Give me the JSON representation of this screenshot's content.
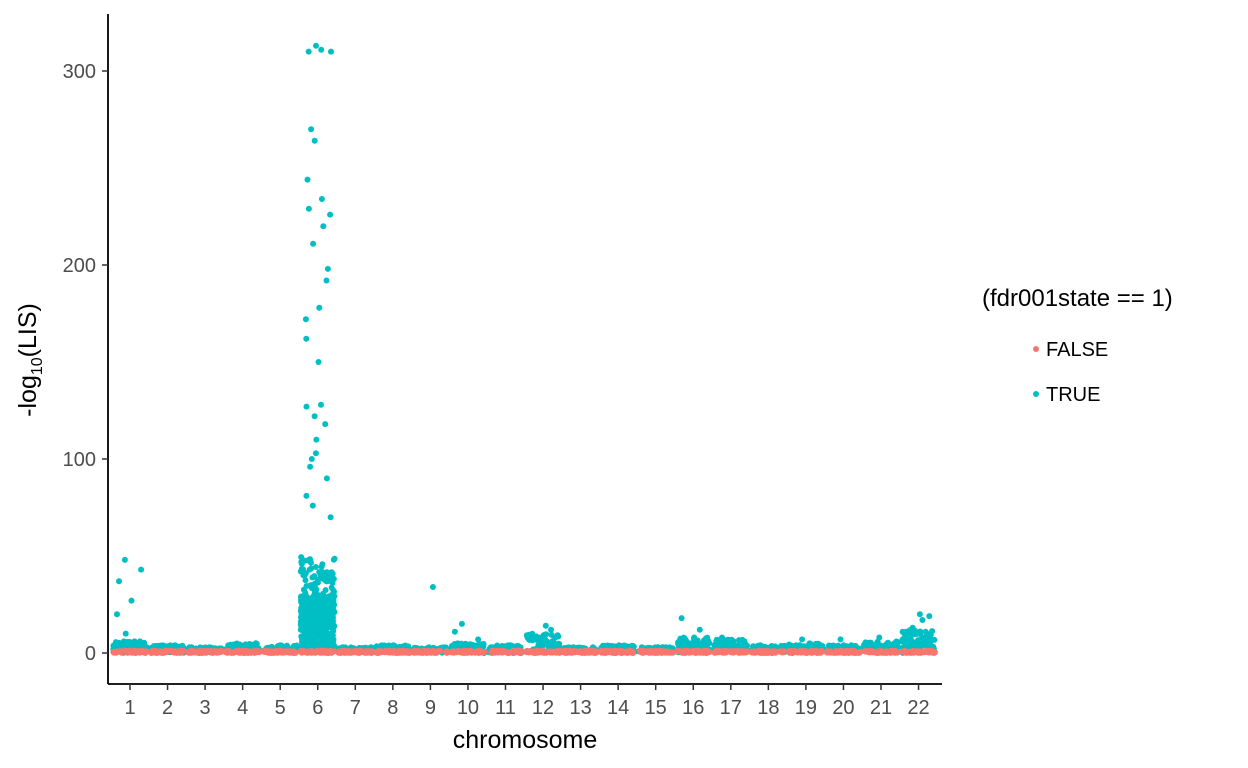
{
  "chart_data": {
    "type": "scatter",
    "title": "",
    "xlabel": "chromosome",
    "ylabel_prefix": "-log",
    "ylabel_sub": "10",
    "ylabel_suffix": "(LIS)",
    "ylim": [
      -13,
      330
    ],
    "yticks": [
      0,
      100,
      200,
      300
    ],
    "categories": [
      "1",
      "2",
      "3",
      "4",
      "5",
      "6",
      "7",
      "8",
      "9",
      "10",
      "11",
      "12",
      "13",
      "14",
      "15",
      "16",
      "17",
      "18",
      "19",
      "20",
      "21",
      "22"
    ],
    "legend": {
      "title": "(fdr001state == 1)",
      "position": "right",
      "entries": [
        {
          "label": "FALSE",
          "color": "#F8766D"
        },
        {
          "label": "TRUE",
          "color": "#00BFC4"
        }
      ]
    },
    "series": [
      {
        "name": "FALSE",
        "color": "#F8766D",
        "description_points": "dense band near 0 across all chromosomes",
        "baseline": 0
      },
      {
        "name": "TRUE",
        "color": "#00BFC4",
        "notable_points": [
          {
            "chr": 1,
            "y": 48
          },
          {
            "chr": 1,
            "y": 37
          },
          {
            "chr": 1,
            "y": 27
          },
          {
            "chr": 1,
            "y": 20
          },
          {
            "chr": 1,
            "y": 10
          },
          {
            "chr": 1,
            "y": 43
          },
          {
            "chr": 1,
            "y": 6
          },
          {
            "chr": 6,
            "y": 310
          },
          {
            "chr": 6,
            "y": 313
          },
          {
            "chr": 6,
            "y": 311
          },
          {
            "chr": 6,
            "y": 310
          },
          {
            "chr": 6,
            "y": 270
          },
          {
            "chr": 6,
            "y": 264
          },
          {
            "chr": 6,
            "y": 244
          },
          {
            "chr": 6,
            "y": 234
          },
          {
            "chr": 6,
            "y": 229
          },
          {
            "chr": 6,
            "y": 226
          },
          {
            "chr": 6,
            "y": 220
          },
          {
            "chr": 6,
            "y": 211
          },
          {
            "chr": 6,
            "y": 198
          },
          {
            "chr": 6,
            "y": 192
          },
          {
            "chr": 6,
            "y": 178
          },
          {
            "chr": 6,
            "y": 172
          },
          {
            "chr": 6,
            "y": 162
          },
          {
            "chr": 6,
            "y": 150
          },
          {
            "chr": 6,
            "y": 128
          },
          {
            "chr": 6,
            "y": 127
          },
          {
            "chr": 6,
            "y": 122
          },
          {
            "chr": 6,
            "y": 118
          },
          {
            "chr": 6,
            "y": 110
          },
          {
            "chr": 6,
            "y": 103
          },
          {
            "chr": 6,
            "y": 100
          },
          {
            "chr": 6,
            "y": 96
          },
          {
            "chr": 6,
            "y": 90
          },
          {
            "chr": 6,
            "y": 81
          },
          {
            "chr": 6,
            "y": 76
          },
          {
            "chr": 6,
            "y": 70
          },
          {
            "chr": 9,
            "y": 34
          },
          {
            "chr": 10,
            "y": 15
          },
          {
            "chr": 10,
            "y": 11
          },
          {
            "chr": 10,
            "y": 7
          },
          {
            "chr": 12,
            "y": 14
          },
          {
            "chr": 12,
            "y": 12
          },
          {
            "chr": 16,
            "y": 18
          },
          {
            "chr": 16,
            "y": 12
          },
          {
            "chr": 17,
            "y": 8
          },
          {
            "chr": 19,
            "y": 7
          },
          {
            "chr": 20,
            "y": 7
          },
          {
            "chr": 21,
            "y": 8
          },
          {
            "chr": 22,
            "y": 20
          },
          {
            "chr": 22,
            "y": 19
          },
          {
            "chr": 22,
            "y": 17
          },
          {
            "chr": 22,
            "y": 13
          },
          {
            "chr": 22,
            "y": 11
          }
        ],
        "band_max_by_chr": [
          6,
          4,
          3,
          5,
          4,
          50,
          3,
          4,
          3,
          5,
          4,
          10,
          3,
          4,
          3,
          8,
          7,
          4,
          5,
          4,
          6,
          12
        ]
      }
    ]
  }
}
